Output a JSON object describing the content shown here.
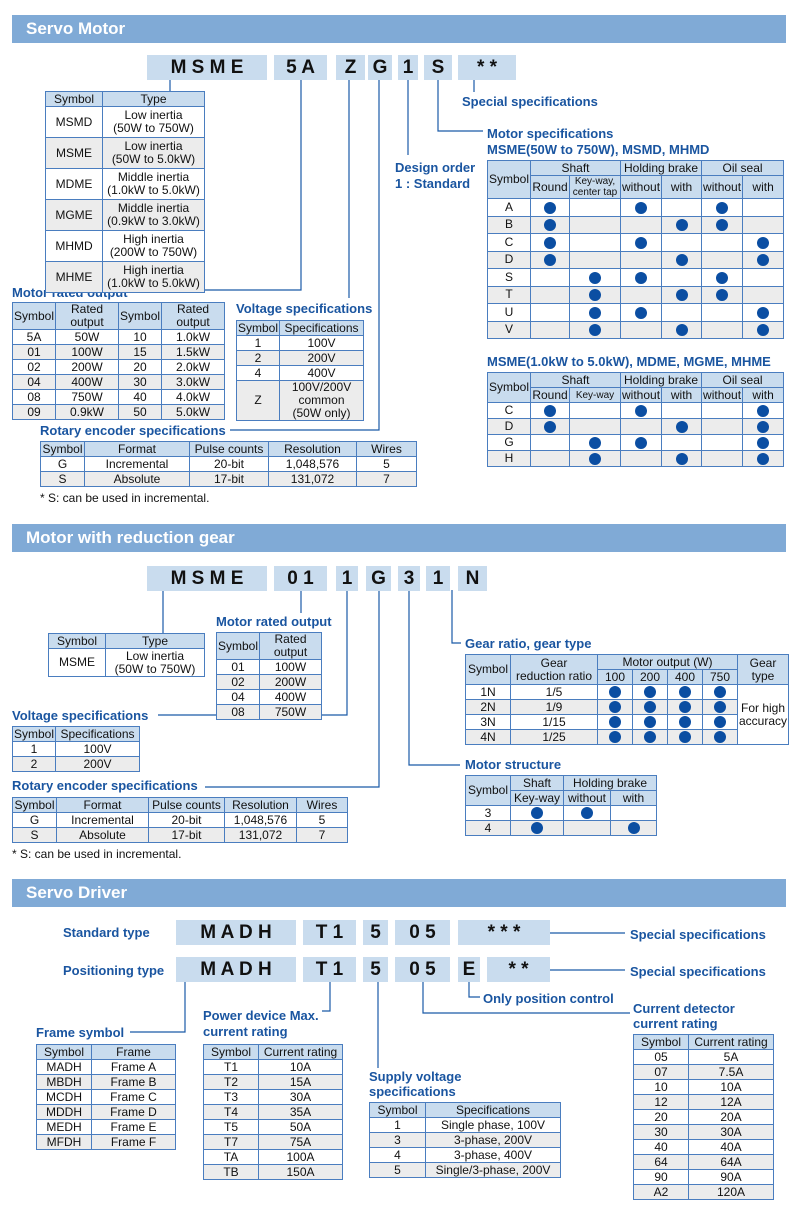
{
  "colors": {
    "accent": "#1a55a0",
    "header_bar": "#80aad6",
    "code_box": "#c9dcee",
    "dot": "#0b4ea2"
  },
  "servo": {
    "title": "Servo Motor",
    "code": [
      "M S M E",
      "5 A",
      "Z",
      "G",
      "1",
      "S",
      "* *"
    ],
    "special": "Special specifications",
    "motor_spec_title": "Motor specifications",
    "motor_spec_sub1": "MSME(50W to 750W), MSMD, MHMD",
    "motor_spec_sub2": "MSME(1.0kW to 5.0kW), MDME, MGME, MHME",
    "design_order": "Design order",
    "design_std": "1 : Standard",
    "rated_label": "Motor rated output",
    "voltage_label": "Voltage specifications",
    "encoder_label": "Rotary encoder specifications",
    "footnote": "* S: can be used in incremental.",
    "type_table": {
      "header": [
        [
          "Symbol",
          "Type"
        ]
      ],
      "rows": [
        [
          "MSMD",
          "Low inertia\n(50W to 750W)"
        ],
        [
          "MSME",
          "Low inertia\n(50W to 5.0kW)"
        ],
        [
          "MDME",
          "Middle inertia\n(1.0kW to 5.0kW)"
        ],
        [
          "MGME",
          "Middle inertia\n(0.9kW to 3.0kW)"
        ],
        [
          "MHMD",
          "High inertia\n(200W to 750W)"
        ],
        [
          "MHME",
          "High inertia\n(1.0kW to 5.0kW)"
        ]
      ]
    },
    "rated_table": {
      "header": [
        [
          "Symbol",
          "Rated output",
          "Symbol",
          "Rated output"
        ]
      ],
      "rows": [
        [
          "5A",
          "50W",
          "10",
          "1.0kW"
        ],
        [
          "01",
          "100W",
          "15",
          "1.5kW"
        ],
        [
          "02",
          "200W",
          "20",
          "2.0kW"
        ],
        [
          "04",
          "400W",
          "30",
          "3.0kW"
        ],
        [
          "08",
          "750W",
          "40",
          "4.0kW"
        ],
        [
          "09",
          "0.9kW",
          "50",
          "5.0kW"
        ]
      ]
    },
    "voltage_table": {
      "header": [
        [
          "Symbol",
          "Specifications"
        ]
      ],
      "rows": [
        [
          "1",
          "100V"
        ],
        [
          "2",
          "200V"
        ],
        [
          "4",
          "400V"
        ],
        [
          "Z",
          "100V/200V\ncommon\n(50W only)"
        ]
      ]
    },
    "encoder_table": {
      "header": [
        [
          "Symbol",
          "Format",
          "Pulse counts",
          "Resolution",
          "Wires"
        ]
      ],
      "rows": [
        [
          "G",
          "Incremental",
          "20-bit",
          "1,048,576",
          "5"
        ],
        [
          "S",
          "Absolute",
          "17-bit",
          "131,072",
          "7"
        ]
      ]
    },
    "spec_table1": {
      "header": [
        [
          "Symbol",
          "Shaft",
          "Holding brake",
          "Oil seal"
        ],
        [
          "Round",
          "Key-way,\ncenter tap",
          "without",
          "with",
          "without",
          "with"
        ]
      ],
      "rows": [
        [
          "A",
          1,
          0,
          1,
          0,
          1,
          0
        ],
        [
          "B",
          1,
          0,
          0,
          1,
          1,
          0
        ],
        [
          "C",
          1,
          0,
          1,
          0,
          0,
          1
        ],
        [
          "D",
          1,
          0,
          0,
          1,
          0,
          1
        ],
        [
          "S",
          0,
          1,
          1,
          0,
          1,
          0
        ],
        [
          "T",
          0,
          1,
          0,
          1,
          1,
          0
        ],
        [
          "U",
          0,
          1,
          1,
          0,
          0,
          1
        ],
        [
          "V",
          0,
          1,
          0,
          1,
          0,
          1
        ]
      ]
    },
    "spec_table2": {
      "header": [
        [
          "Symbol",
          "Shaft",
          "Holding brake",
          "Oil seal"
        ],
        [
          "Round",
          "Key-way",
          "without",
          "with",
          "without",
          "with"
        ]
      ],
      "rows": [
        [
          "C",
          1,
          0,
          1,
          0,
          0,
          1
        ],
        [
          "D",
          1,
          0,
          0,
          1,
          0,
          1
        ],
        [
          "G",
          0,
          1,
          1,
          0,
          0,
          1
        ],
        [
          "H",
          0,
          1,
          0,
          1,
          0,
          1
        ]
      ]
    }
  },
  "gear": {
    "title": "Motor with reduction gear",
    "code": [
      "M S M E",
      "0 1",
      "1",
      "G",
      "3",
      "1",
      "N"
    ],
    "rated_label": "Motor rated output",
    "gear_label": "Gear ratio, gear type",
    "voltage_label": "Voltage specifications",
    "encoder_label": "Rotary encoder specifications",
    "structure_label": "Motor structure",
    "footnote": "* S: can be used in incremental.",
    "type_table": {
      "header": [
        [
          "Symbol",
          "Type"
        ]
      ],
      "rows": [
        [
          "MSME",
          "Low inertia\n(50W to 750W)"
        ]
      ]
    },
    "rated_table": {
      "header": [
        [
          "Symbol",
          "Rated output"
        ]
      ],
      "rows": [
        [
          "01",
          "100W"
        ],
        [
          "02",
          "200W"
        ],
        [
          "04",
          "400W"
        ],
        [
          "08",
          "750W"
        ]
      ]
    },
    "voltage_table": {
      "header": [
        [
          "Symbol",
          "Specifications"
        ]
      ],
      "rows": [
        [
          "1",
          "100V"
        ],
        [
          "2",
          "200V"
        ]
      ]
    },
    "encoder_table": {
      "header": [
        [
          "Symbol",
          "Format",
          "Pulse counts",
          "Resolution",
          "Wires"
        ]
      ],
      "rows": [
        [
          "G",
          "Incremental",
          "20-bit",
          "1,048,576",
          "5"
        ],
        [
          "S",
          "Absolute",
          "17-bit",
          "131,072",
          "7"
        ]
      ]
    },
    "gear_table": {
      "header": [
        [
          "Symbol",
          "Gear\nreduction ratio",
          "Motor output (W)",
          "Gear\ntype"
        ],
        [
          "100",
          "200",
          "400",
          "750"
        ]
      ],
      "rows": [
        [
          "1N",
          "1/5",
          1,
          1,
          1,
          1
        ],
        [
          "2N",
          "1/9",
          1,
          1,
          1,
          1
        ],
        [
          "3N",
          "1/15",
          1,
          1,
          1,
          1
        ],
        [
          "4N",
          "1/25",
          1,
          1,
          1,
          1
        ]
      ],
      "gear_type_value": "For high\naccuracy"
    },
    "structure_table": {
      "header": [
        [
          "Symbol",
          "Shaft",
          "Holding brake"
        ],
        [
          "Key-way",
          "without",
          "with"
        ]
      ],
      "rows": [
        [
          "3",
          1,
          1,
          0
        ],
        [
          "4",
          1,
          0,
          1
        ]
      ]
    }
  },
  "driver": {
    "title": "Servo Driver",
    "standard_label": "Standard type",
    "positioning_label": "Positioning type",
    "code_std": [
      "M A D H",
      "T 1",
      "5",
      "0 5",
      "* * *"
    ],
    "code_pos": [
      "M A D H",
      "T 1",
      "5",
      "0 5",
      "E",
      "* *"
    ],
    "special1": "Special specifications",
    "special2": "Special specifications",
    "only_pos": "Only position control",
    "current_label1": "Current detector",
    "current_label2": "current rating",
    "frame_label": "Frame symbol",
    "power_label1": "Power device Max.",
    "power_label2": "current rating",
    "supply_label1": "Supply voltage",
    "supply_label2": "specifications",
    "frame_table": {
      "header": [
        [
          "Symbol",
          "Frame"
        ]
      ],
      "rows": [
        [
          "MADH",
          "Frame A"
        ],
        [
          "MBDH",
          "Frame B"
        ],
        [
          "MCDH",
          "Frame C"
        ],
        [
          "MDDH",
          "Frame D"
        ],
        [
          "MEDH",
          "Frame E"
        ],
        [
          "MFDH",
          "Frame F"
        ]
      ]
    },
    "power_table": {
      "header": [
        [
          "Symbol",
          "Current rating"
        ]
      ],
      "rows": [
        [
          "T1",
          "10A"
        ],
        [
          "T2",
          "15A"
        ],
        [
          "T3",
          "30A"
        ],
        [
          "T4",
          "35A"
        ],
        [
          "T5",
          "50A"
        ],
        [
          "T7",
          "75A"
        ],
        [
          "TA",
          "100A"
        ],
        [
          "TB",
          "150A"
        ]
      ]
    },
    "supply_table": {
      "header": [
        [
          "Symbol",
          "Specifications"
        ]
      ],
      "rows": [
        [
          "1",
          "Single phase, 100V"
        ],
        [
          "3",
          "3-phase, 200V"
        ],
        [
          "4",
          "3-phase, 400V"
        ],
        [
          "5",
          "Single/3-phase, 200V"
        ]
      ]
    },
    "current_table": {
      "header": [
        [
          "Symbol",
          "Current rating"
        ]
      ],
      "rows": [
        [
          "05",
          "5A"
        ],
        [
          "07",
          "7.5A"
        ],
        [
          "10",
          "10A"
        ],
        [
          "12",
          "12A"
        ],
        [
          "20",
          "20A"
        ],
        [
          "30",
          "30A"
        ],
        [
          "40",
          "40A"
        ],
        [
          "64",
          "64A"
        ],
        [
          "90",
          "90A"
        ],
        [
          "A2",
          "120A"
        ]
      ]
    }
  }
}
